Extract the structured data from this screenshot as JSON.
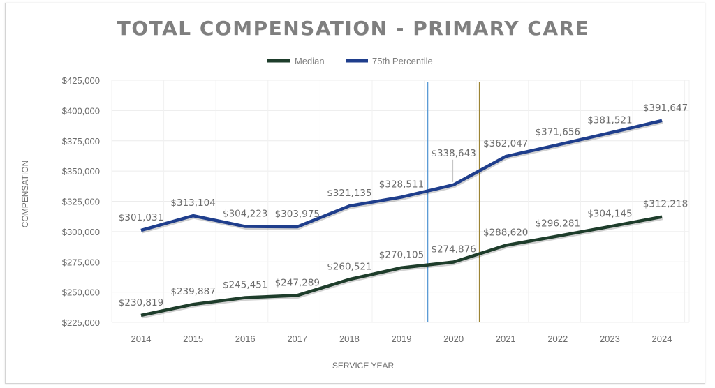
{
  "chart_data": {
    "type": "line",
    "title": "TOTAL COMPENSATION - PRIMARY CARE",
    "xlabel": "SERVICE YEAR",
    "ylabel": "COMPENSATION",
    "x": [
      "2014",
      "2015",
      "2016",
      "2017",
      "2018",
      "2019",
      "2020",
      "2021",
      "2022",
      "2023",
      "2024"
    ],
    "ylim": [
      225000,
      425000
    ],
    "yticks": [
      225000,
      250000,
      275000,
      300000,
      325000,
      350000,
      375000,
      400000,
      425000
    ],
    "ytick_labels": [
      "$225,000",
      "$250,000",
      "$275,000",
      "$300,000",
      "$325,000",
      "$350,000",
      "$375,000",
      "$400,000",
      "$425,000"
    ],
    "grid": true,
    "legend_position": "top-center",
    "series": [
      {
        "name": "Median",
        "color": "#1e3d2b",
        "values": [
          230819,
          239887,
          245451,
          247289,
          260521,
          270105,
          274876,
          288620,
          296281,
          304145,
          312218
        ],
        "labels": [
          "$230,819",
          "$239,887",
          "$245,451",
          "$247,289",
          "$260,521",
          "$270,105",
          "$274,876",
          "$288,620",
          "$296,281",
          "$304,145",
          "$312,218"
        ]
      },
      {
        "name": "75th Percentile",
        "color": "#1f3e8c",
        "values": [
          301031,
          313104,
          304223,
          303975,
          321135,
          328511,
          338643,
          362047,
          371656,
          381521,
          391647
        ],
        "labels": [
          "$301,031",
          "$313,104",
          "$304,223",
          "$303,975",
          "$321,135",
          "$328,511",
          "$338,643",
          "$362,047",
          "$371,656",
          "$381,521",
          "$391,647"
        ]
      }
    ],
    "reference_lines": [
      {
        "x": 2019.5,
        "color": "#5b9bd5"
      },
      {
        "x": 2020.5,
        "color": "#9c8434"
      }
    ]
  }
}
